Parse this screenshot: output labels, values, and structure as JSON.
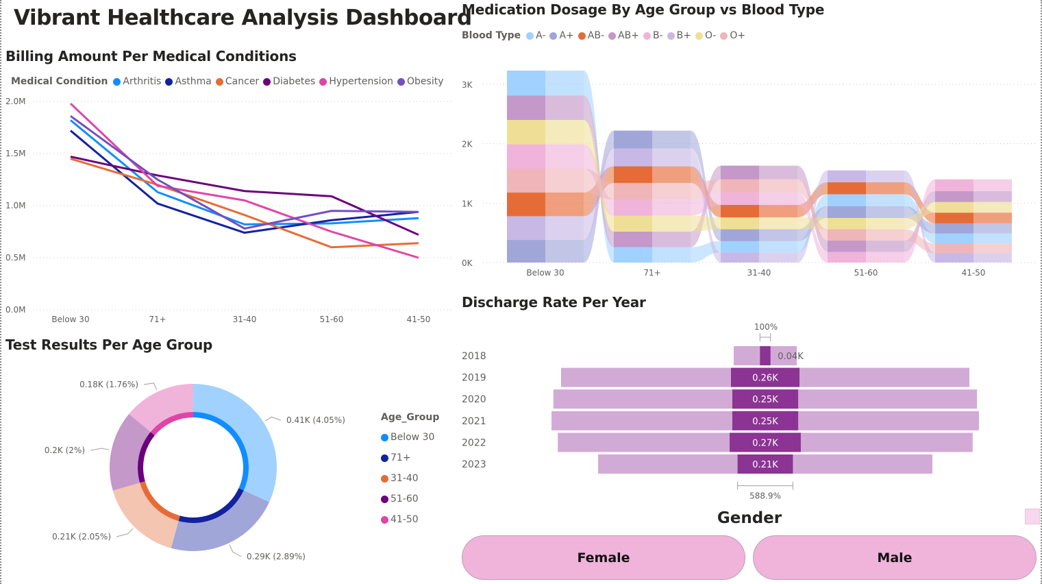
{
  "dashboard": {
    "title": "Vibrant Healthcare Analysis Dashboard"
  },
  "billing": {
    "title": "Billing Amount Per Medical Conditions",
    "legend_title": "Medical Condition"
  },
  "medication": {
    "title": "Medication Dosage By Age Group vs Blood Type",
    "legend_title": "Blood Type"
  },
  "test_results": {
    "title": "Test Results Per Age Group",
    "legend_title": "Age_Group"
  },
  "discharge": {
    "title": "Discharge Rate Per Year"
  },
  "gender_slicer": {
    "title": "Gender",
    "options": [
      "Female",
      "Male"
    ]
  },
  "chart_data": [
    {
      "id": "billing",
      "type": "line",
      "title": "Billing Amount Per Medical Conditions",
      "xlabel": "",
      "ylabel": "",
      "categories": [
        "Below 30",
        "71+",
        "31-40",
        "51-60",
        "41-50"
      ],
      "yticks": [
        "0.0M",
        "0.5M",
        "1.0M",
        "1.5M",
        "2.0M"
      ],
      "ylim": [
        0,
        2.0
      ],
      "units": "M",
      "grid": true,
      "legend_position": "top-left",
      "series": [
        {
          "name": "Arthritis",
          "color": "#118dff",
          "values": [
            1.82,
            1.13,
            0.82,
            0.83,
            0.88
          ]
        },
        {
          "name": "Asthma",
          "color": "#12239e",
          "values": [
            1.72,
            1.02,
            0.74,
            0.86,
            0.94
          ]
        },
        {
          "name": "Cancer",
          "color": "#e66c37",
          "values": [
            1.45,
            1.2,
            0.91,
            0.6,
            0.64
          ]
        },
        {
          "name": "Diabetes",
          "color": "#6b007b",
          "values": [
            1.47,
            1.29,
            1.14,
            1.09,
            0.72
          ]
        },
        {
          "name": "Hypertension",
          "color": "#e044a7",
          "values": [
            1.98,
            1.19,
            1.05,
            0.75,
            0.5
          ]
        },
        {
          "name": "Obesity",
          "color": "#744ec2",
          "values": [
            1.86,
            1.25,
            0.78,
            0.95,
            0.94
          ]
        }
      ]
    },
    {
      "id": "medication",
      "type": "ribbon",
      "title": "Medication Dosage By Age Group vs Blood Type",
      "categories": [
        "Below 30",
        "71+",
        "31-40",
        "51-60",
        "41-50"
      ],
      "yticks": [
        "0K",
        "1K",
        "2K",
        "3K"
      ],
      "ylim": [
        0,
        3.25
      ],
      "units": "K",
      "grid": true,
      "legend_position": "top-left",
      "legend": [
        {
          "name": "A-",
          "color": "#a0d1ff"
        },
        {
          "name": "A+",
          "color": "#a0a6d8"
        },
        {
          "name": "AB-",
          "color": "#e66c37"
        },
        {
          "name": "AB+",
          "color": "#c498c9"
        },
        {
          "name": "B-",
          "color": "#f0b3da"
        },
        {
          "name": "B+",
          "color": "#c8b8e6"
        },
        {
          "name": "O-",
          "color": "#efdf96"
        },
        {
          "name": "O+",
          "color": "#efb5b9"
        }
      ],
      "stacks": [
        {
          "category": "Below 30",
          "total": 3.25,
          "order_bottom_to_top": [
            "A+",
            "B+",
            "AB-",
            "O+",
            "B-",
            "O-",
            "AB+",
            "A-"
          ],
          "values": [
            0.38,
            0.4,
            0.4,
            0.4,
            0.41,
            0.41,
            0.41,
            0.42
          ]
        },
        {
          "category": "71+",
          "total": 2.2,
          "order_bottom_to_top": [
            "A-",
            "AB+",
            "O-",
            "B-",
            "O+",
            "AB-",
            "B+",
            "A+"
          ],
          "values": [
            0.26,
            0.26,
            0.27,
            0.27,
            0.28,
            0.28,
            0.3,
            0.3
          ]
        },
        {
          "category": "31-40",
          "total": 1.63,
          "order_bottom_to_top": [
            "B+",
            "A-",
            "A+",
            "O-",
            "AB-",
            "B-",
            "O+",
            "AB+"
          ],
          "values": [
            0.17,
            0.19,
            0.2,
            0.2,
            0.21,
            0.21,
            0.22,
            0.23
          ]
        },
        {
          "category": "51-60",
          "total": 1.55,
          "order_bottom_to_top": [
            "B-",
            "AB+",
            "O+",
            "O-",
            "A+",
            "A-",
            "AB-",
            "B+"
          ],
          "values": [
            0.18,
            0.19,
            0.19,
            0.19,
            0.2,
            0.2,
            0.2,
            0.2
          ]
        },
        {
          "category": "41-50",
          "total": 1.4,
          "order_bottom_to_top": [
            "B+",
            "O+",
            "A-",
            "A+",
            "AB-",
            "O-",
            "AB+",
            "B-"
          ],
          "values": [
            0.16,
            0.16,
            0.17,
            0.17,
            0.18,
            0.18,
            0.18,
            0.2
          ]
        }
      ]
    },
    {
      "id": "test_results",
      "type": "pie",
      "title": "Test Results Per Age Group",
      "legend_title": "Age_Group",
      "legend_position": "right",
      "slices": [
        {
          "name": "Below 30",
          "value": 0.41,
          "label": "0.41K (4.05%)",
          "color": "#118dff",
          "outer_color": "#a0d1ff"
        },
        {
          "name": "71+",
          "value": 0.29,
          "label": "0.29K (2.89%)",
          "color": "#12239e",
          "outer_color": "#a0a6d8"
        },
        {
          "name": "31-40",
          "value": 0.21,
          "label": "0.21K (2.05%)",
          "color": "#e66c37",
          "outer_color": "#f4c5b0"
        },
        {
          "name": "51-60",
          "value": 0.2,
          "label": "0.2K (2%)",
          "color": "#6b007b",
          "outer_color": "#c498c9"
        },
        {
          "name": "41-50",
          "value": 0.18,
          "label": "0.18K (1.76%)",
          "color": "#e044a7",
          "outer_color": "#f0b3da"
        }
      ]
    },
    {
      "id": "discharge",
      "type": "bar",
      "subtype": "funnel",
      "title": "Discharge Rate Per Year",
      "categories": [
        "2018",
        "2019",
        "2020",
        "2021",
        "2022",
        "2023"
      ],
      "values": [
        0.04,
        0.26,
        0.25,
        0.25,
        0.27,
        0.21
      ],
      "value_labels": [
        "0.04K",
        "0.26K",
        "0.25K",
        "0.25K",
        "0.27K",
        "0.21K"
      ],
      "background_extent": [
        0.115,
        0.745,
        0.773,
        0.78,
        0.757,
        0.61
      ],
      "top_annotation": "100%",
      "bottom_annotation": "588.9%",
      "bar_color": "#8b3493",
      "background_color": "#d2aad6"
    }
  ]
}
